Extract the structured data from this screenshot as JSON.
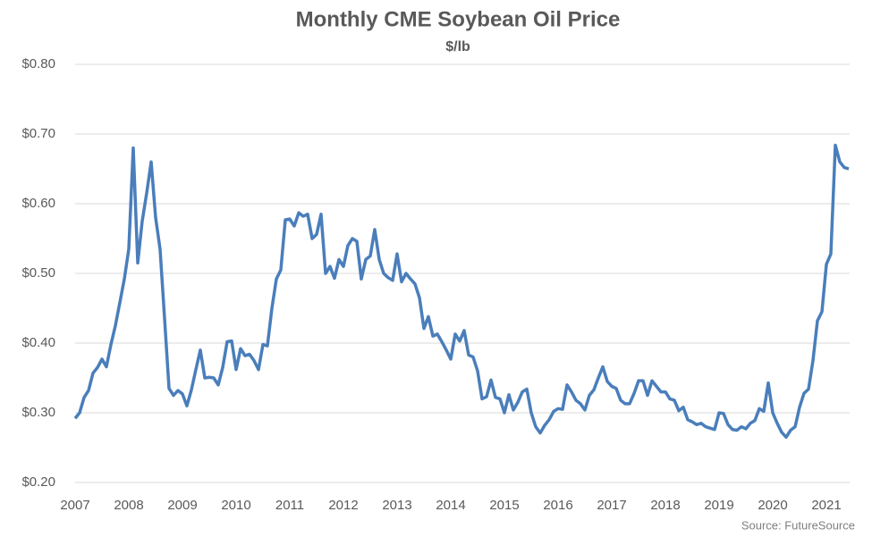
{
  "chart_data": {
    "type": "line",
    "title": "Monthly CME Soybean Oil Price",
    "subtitle": "$/lb",
    "source": "Source: FutureSource",
    "xlim": [
      2007,
      2021.5
    ],
    "xticks": [
      2007,
      2008,
      2009,
      2010,
      2011,
      2012,
      2013,
      2014,
      2015,
      2016,
      2017,
      2018,
      2019,
      2020,
      2021
    ],
    "ylim": [
      0.2,
      0.8
    ],
    "yticks": [
      {
        "value": 0.2,
        "label": "$0.20"
      },
      {
        "value": 0.3,
        "label": "$0.30"
      },
      {
        "value": 0.4,
        "label": "$0.40"
      },
      {
        "value": 0.5,
        "label": "$0.50"
      },
      {
        "value": 0.6,
        "label": "$0.60"
      },
      {
        "value": 0.7,
        "label": "$0.70"
      },
      {
        "value": 0.8,
        "label": "$0.80"
      }
    ],
    "grid": true,
    "x": [
      2007.0,
      2007.083,
      2007.167,
      2007.25,
      2007.333,
      2007.417,
      2007.5,
      2007.583,
      2007.667,
      2007.75,
      2007.833,
      2007.917,
      2008.0,
      2008.083,
      2008.167,
      2008.25,
      2008.333,
      2008.417,
      2008.5,
      2008.583,
      2008.667,
      2008.75,
      2008.833,
      2008.917,
      2009.0,
      2009.083,
      2009.167,
      2009.25,
      2009.333,
      2009.417,
      2009.5,
      2009.583,
      2009.667,
      2009.75,
      2009.833,
      2009.917,
      2010.0,
      2010.083,
      2010.167,
      2010.25,
      2010.333,
      2010.417,
      2010.5,
      2010.583,
      2010.667,
      2010.75,
      2010.833,
      2010.917,
      2011.0,
      2011.083,
      2011.167,
      2011.25,
      2011.333,
      2011.417,
      2011.5,
      2011.583,
      2011.667,
      2011.75,
      2011.833,
      2011.917,
      2012.0,
      2012.083,
      2012.167,
      2012.25,
      2012.333,
      2012.417,
      2012.5,
      2012.583,
      2012.667,
      2012.75,
      2012.833,
      2012.917,
      2013.0,
      2013.083,
      2013.167,
      2013.25,
      2013.333,
      2013.417,
      2013.5,
      2013.583,
      2013.667,
      2013.75,
      2013.833,
      2013.917,
      2014.0,
      2014.083,
      2014.167,
      2014.25,
      2014.333,
      2014.417,
      2014.5,
      2014.583,
      2014.667,
      2014.75,
      2014.833,
      2014.917,
      2015.0,
      2015.083,
      2015.167,
      2015.25,
      2015.333,
      2015.417,
      2015.5,
      2015.583,
      2015.667,
      2015.75,
      2015.833,
      2015.917,
      2016.0,
      2016.083,
      2016.167,
      2016.25,
      2016.333,
      2016.417,
      2016.5,
      2016.583,
      2016.667,
      2016.75,
      2016.833,
      2016.917,
      2017.0,
      2017.083,
      2017.167,
      2017.25,
      2017.333,
      2017.417,
      2017.5,
      2017.583,
      2017.667,
      2017.75,
      2017.833,
      2017.917,
      2018.0,
      2018.083,
      2018.167,
      2018.25,
      2018.333,
      2018.417,
      2018.5,
      2018.583,
      2018.667,
      2018.75,
      2018.833,
      2018.917,
      2019.0,
      2019.083,
      2019.167,
      2019.25,
      2019.333,
      2019.417,
      2019.5,
      2019.583,
      2019.667,
      2019.75,
      2019.833,
      2019.917,
      2020.0,
      2020.083,
      2020.167,
      2020.25,
      2020.333,
      2020.417,
      2020.5,
      2020.583,
      2020.667,
      2020.75,
      2020.833,
      2020.917,
      2021.0,
      2021.083,
      2021.167,
      2021.25,
      2021.333,
      2021.417
    ],
    "series": [
      {
        "name": "Soybean Oil",
        "color": "#4a7ebb",
        "values": [
          0.292,
          0.3,
          0.322,
          0.332,
          0.357,
          0.365,
          0.377,
          0.366,
          0.398,
          0.425,
          0.458,
          0.492,
          0.535,
          0.68,
          0.515,
          0.575,
          0.615,
          0.66,
          0.58,
          0.535,
          0.435,
          0.335,
          0.325,
          0.332,
          0.327,
          0.31,
          0.333,
          0.362,
          0.39,
          0.35,
          0.351,
          0.35,
          0.34,
          0.365,
          0.402,
          0.403,
          0.362,
          0.392,
          0.382,
          0.384,
          0.375,
          0.362,
          0.398,
          0.396,
          0.45,
          0.492,
          0.505,
          0.577,
          0.578,
          0.568,
          0.587,
          0.582,
          0.585,
          0.55,
          0.556,
          0.585,
          0.5,
          0.51,
          0.493,
          0.52,
          0.51,
          0.54,
          0.55,
          0.546,
          0.492,
          0.52,
          0.525,
          0.563,
          0.52,
          0.5,
          0.494,
          0.49,
          0.528,
          0.488,
          0.5,
          0.492,
          0.485,
          0.465,
          0.421,
          0.438,
          0.41,
          0.413,
          0.402,
          0.39,
          0.377,
          0.413,
          0.403,
          0.418,
          0.383,
          0.38,
          0.36,
          0.32,
          0.323,
          0.347,
          0.322,
          0.32,
          0.3,
          0.326,
          0.304,
          0.315,
          0.33,
          0.334,
          0.3,
          0.28,
          0.271,
          0.282,
          0.29,
          0.302,
          0.306,
          0.305,
          0.34,
          0.33,
          0.318,
          0.313,
          0.304,
          0.325,
          0.333,
          0.35,
          0.366,
          0.345,
          0.338,
          0.335,
          0.318,
          0.313,
          0.313,
          0.328,
          0.346,
          0.346,
          0.325,
          0.346,
          0.338,
          0.33,
          0.33,
          0.32,
          0.318,
          0.303,
          0.308,
          0.29,
          0.287,
          0.283,
          0.285,
          0.28,
          0.278,
          0.276,
          0.3,
          0.299,
          0.283,
          0.276,
          0.275,
          0.28,
          0.277,
          0.285,
          0.289,
          0.306,
          0.302,
          0.343,
          0.3,
          0.285,
          0.272,
          0.265,
          0.275,
          0.28,
          0.308,
          0.328,
          0.334,
          0.375,
          0.432,
          0.445,
          0.513,
          0.528,
          0.684,
          0.66,
          0.652,
          0.65
        ]
      }
    ]
  }
}
